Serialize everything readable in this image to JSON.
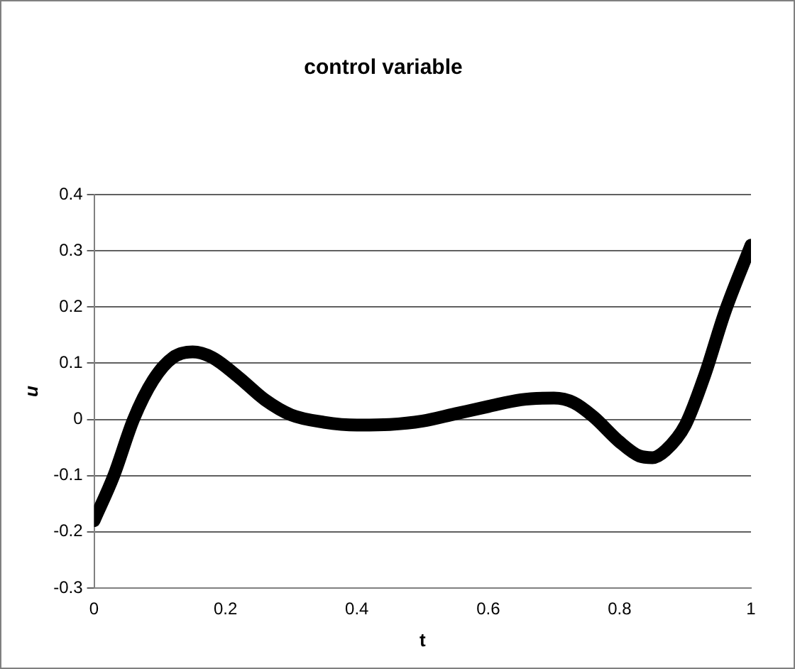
{
  "chart_data": {
    "type": "line",
    "title": "control variable",
    "xlabel": "t",
    "ylabel": "u",
    "x": [
      0,
      0.03,
      0.06,
      0.09,
      0.12,
      0.15,
      0.18,
      0.22,
      0.26,
      0.3,
      0.35,
      0.4,
      0.45,
      0.5,
      0.55,
      0.6,
      0.65,
      0.7,
      0.73,
      0.76,
      0.8,
      0.83,
      0.85,
      0.87,
      0.9,
      0.93,
      0.96,
      1
    ],
    "series": [
      {
        "color": "#000000",
        "values": [
          -0.18,
          -0.1,
          0,
          0.07,
          0.11,
          0.12,
          0.11,
          0.075,
          0.035,
          0.008,
          -0.005,
          -0.01,
          -0.009,
          -0.003,
          0.01,
          0.023,
          0.035,
          0.038,
          0.03,
          0.005,
          -0.04,
          -0.065,
          -0.068,
          -0.055,
          -0.01,
          0.08,
          0.19,
          0.31
        ]
      }
    ],
    "xlim": [
      0,
      1
    ],
    "xticks": [
      0,
      0.2,
      0.4,
      0.6,
      0.8,
      1
    ],
    "ylim": [
      -0.3,
      0.4
    ],
    "yticks": [
      -0.3,
      -0.2,
      -0.1,
      0,
      0.1,
      0.2,
      0.3,
      0.4
    ],
    "grid": "y",
    "legend": false,
    "marker": "none",
    "line_style": "solid"
  }
}
